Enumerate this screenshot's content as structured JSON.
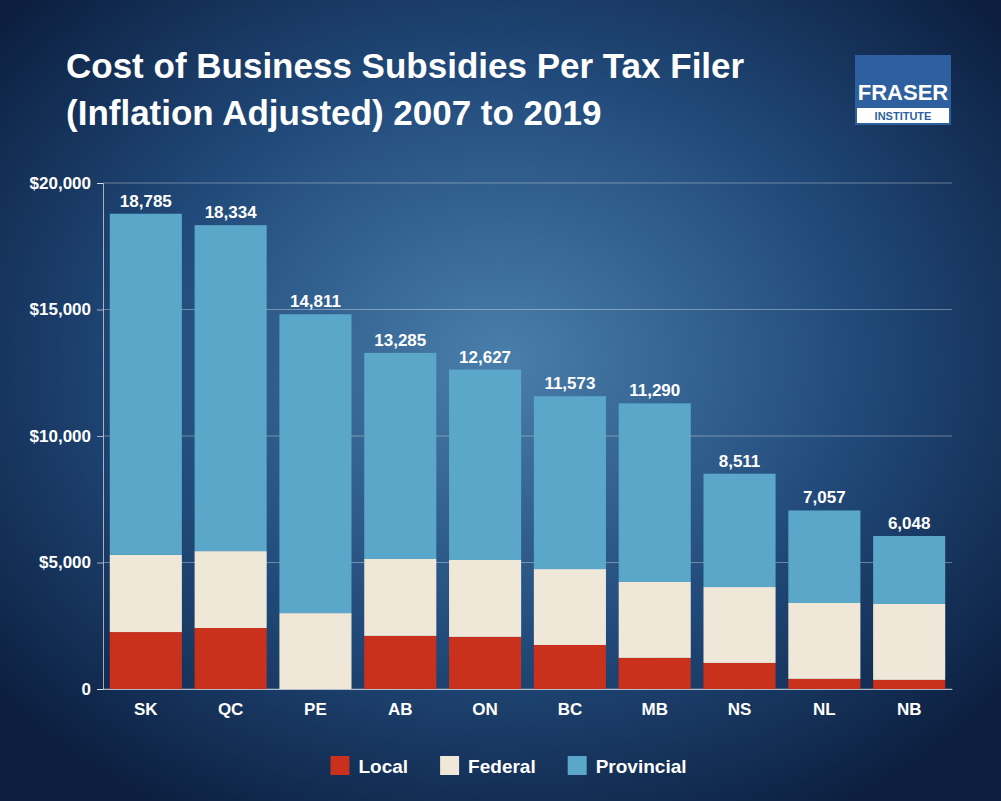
{
  "chart_data": {
    "type": "bar",
    "stacked": true,
    "title": "Cost of Business Subsidies Per Tax Filer (Inflation Adjusted) 2007 to 2019",
    "source": "FRASER INSTITUTE",
    "categories": [
      "SK",
      "QC",
      "PE",
      "AB",
      "ON",
      "BC",
      "MB",
      "NS",
      "NL",
      "NB"
    ],
    "series": [
      {
        "name": "Local",
        "color": "#c9311d",
        "values": [
          2250,
          2410,
          0,
          2100,
          2060,
          1740,
          1230,
          1030,
          400,
          360
        ]
      },
      {
        "name": "Federal",
        "color": "#efe7d8",
        "values": [
          3050,
          3040,
          3000,
          3040,
          3040,
          3000,
          3000,
          3000,
          3000,
          3000
        ]
      },
      {
        "name": "Provincial",
        "color": "#5aa7c9",
        "values": [
          13485,
          12884,
          11811,
          8145,
          7527,
          6833,
          7060,
          4481,
          3657,
          2688
        ]
      }
    ],
    "totals": [
      18785,
      18334,
      14811,
      13285,
      12627,
      11573,
      11290,
      8511,
      7057,
      6048
    ],
    "total_labels": [
      "18,785",
      "18,334",
      "14,811",
      "13,285",
      "12,627",
      "11,573",
      "11,290",
      "8,511",
      "7,057",
      "6,048"
    ],
    "ylim": [
      0,
      20000
    ],
    "yticks": [
      0,
      {
        "value": 5000,
        "label": "$5,000"
      },
      {
        "value": 10000,
        "label": "$10,000"
      },
      {
        "value": 15000,
        "label": "$15,000"
      },
      {
        "value": 20000,
        "label": "$20,000"
      }
    ],
    "grid": true,
    "legend": "bottom"
  }
}
